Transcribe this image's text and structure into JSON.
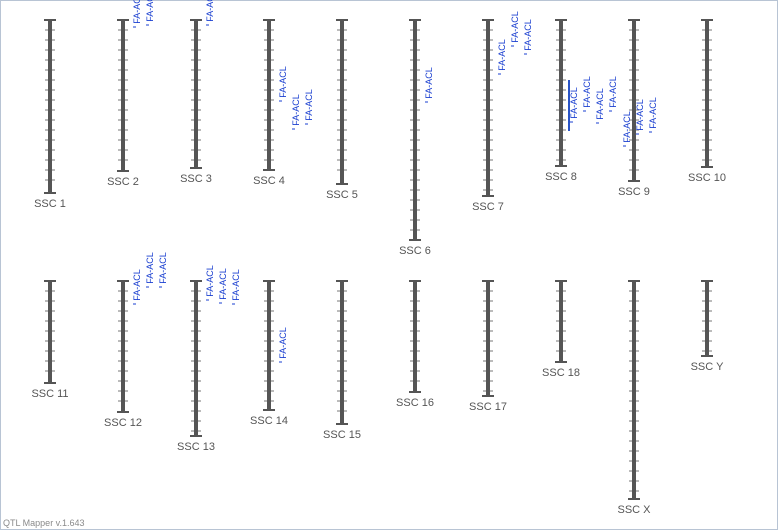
{
  "chromosomes": [
    {
      "label": "SSC 1",
      "qtls": []
    },
    {
      "label": "SSC 2",
      "qtls": [
        "FA-ACL",
        "FA-ACL"
      ]
    },
    {
      "label": "SSC 3",
      "qtls": [
        "FA-ACL"
      ]
    },
    {
      "label": "SSC 4",
      "qtls": [
        "FA-ACL",
        "FA-ACL",
        "FA-ACL"
      ]
    },
    {
      "label": "SSC 5",
      "qtls": []
    },
    {
      "label": "SSC 6",
      "qtls": [
        "FA-ACL"
      ]
    },
    {
      "label": "SSC 7",
      "qtls": [
        "FA-ACL",
        "FA-ACL",
        "FA-ACL"
      ]
    },
    {
      "label": "SSC 8",
      "qtls": [
        "FA-ACL",
        "FA-ACL",
        "FA-ACL",
        "FA-ACL"
      ]
    },
    {
      "label": "SSC 9",
      "qtls": [
        "FA-ACL",
        "FA-ACL",
        "FA-ACL"
      ]
    },
    {
      "label": "SSC 10",
      "qtls": []
    },
    {
      "label": "SSC 11",
      "qtls": []
    },
    {
      "label": "SSC 12",
      "qtls": [
        "FA-ACL",
        "FA-ACL",
        "FA-ACL"
      ]
    },
    {
      "label": "SSC 13",
      "qtls": [
        "FA-ACL",
        "FA-ACL",
        "FA-ACL"
      ]
    },
    {
      "label": "SSC 14",
      "qtls": [
        "FA-ACL"
      ]
    },
    {
      "label": "SSC 15",
      "qtls": []
    },
    {
      "label": "SSC 16",
      "qtls": []
    },
    {
      "label": "SSC 17",
      "qtls": []
    },
    {
      "label": "SSC 18",
      "qtls": []
    },
    {
      "label": "SSC X",
      "qtls": []
    },
    {
      "label": "SSC Y",
      "qtls": []
    }
  ],
  "footer": "QTL Mapper v.1.643"
}
